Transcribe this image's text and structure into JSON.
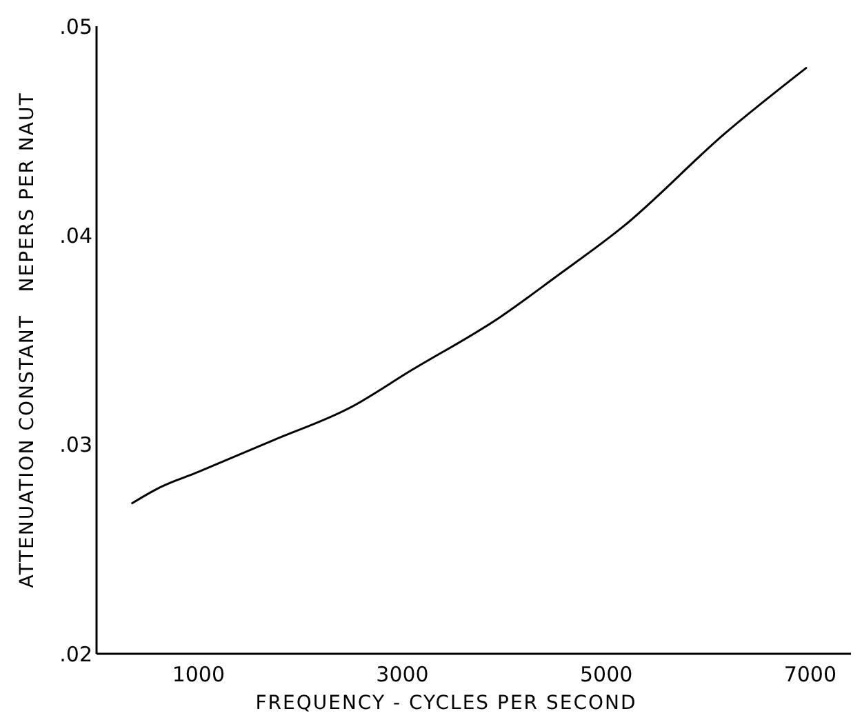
{
  "chart_data": {
    "type": "line",
    "xlabel": "FREQUENCY - CYCLES PER SECOND",
    "ylabel": "ATTENUATION CONSTANT   NEPERS PER NAUT",
    "x": [
      350,
      600,
      1000,
      1730,
      2500,
      3070,
      3960,
      4500,
      5160,
      6170,
      6960
    ],
    "series": [
      {
        "color": "#000000",
        "values": [
          0.0272,
          0.0279,
          0.0287,
          0.0302,
          0.0318,
          0.0335,
          0.0361,
          0.038,
          0.0404,
          0.0449,
          0.048
        ]
      }
    ],
    "xlim": [
      0,
      7400
    ],
    "xticks": [
      1000,
      3000,
      5000,
      7000
    ],
    "ylim": [
      0.02,
      0.05
    ],
    "yticks": [
      {
        "value": 0.02,
        "label": ".02"
      },
      {
        "value": 0.03,
        "label": ".03"
      },
      {
        "value": 0.04,
        "label": ".04"
      },
      {
        "value": 0.05,
        "label": ".05"
      }
    ],
    "grid": false,
    "marker": "none",
    "line_style": "solid"
  }
}
